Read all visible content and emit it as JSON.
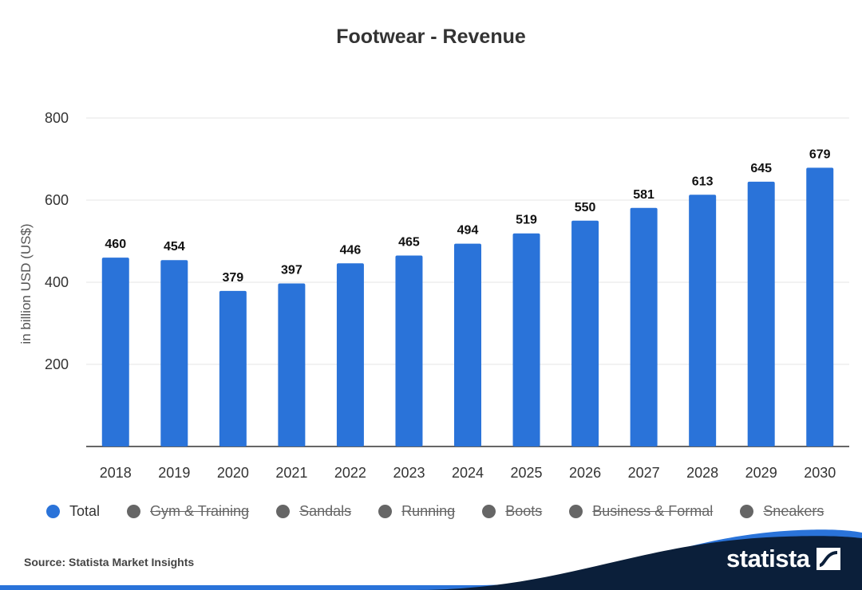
{
  "chart_data": {
    "type": "bar",
    "title": "Footwear - Revenue",
    "ylabel": "in billion USD (US$)",
    "xlabel": "",
    "categories": [
      "2018",
      "2019",
      "2020",
      "2021",
      "2022",
      "2023",
      "2024",
      "2025",
      "2026",
      "2027",
      "2028",
      "2029",
      "2030"
    ],
    "series": [
      {
        "name": "Total",
        "values": [
          460,
          454,
          379,
          397,
          446,
          465,
          494,
          519,
          550,
          581,
          613,
          645,
          679
        ]
      }
    ],
    "ylim": [
      0,
      800
    ],
    "yticks": [
      200,
      400,
      600,
      800
    ],
    "grid": true,
    "bar_color": "#2a73d9",
    "legend_position": "bottom-left"
  },
  "legend": {
    "items": [
      {
        "label": "Total",
        "active": true,
        "color": "#2a73d9"
      },
      {
        "label": "Gym & Training",
        "active": false,
        "color": "#666666"
      },
      {
        "label": "Sandals",
        "active": false,
        "color": "#666666"
      },
      {
        "label": "Running",
        "active": false,
        "color": "#666666"
      },
      {
        "label": "Boots",
        "active": false,
        "color": "#666666"
      },
      {
        "label": "Business & Formal",
        "active": false,
        "color": "#666666"
      },
      {
        "label": "Sneakers",
        "active": false,
        "color": "#666666"
      }
    ]
  },
  "footer": {
    "source": "Source: Statista Market Insights",
    "logo_text": "statista",
    "wave_color": "#0b1f3a",
    "wave_accent_color": "#2a73d9"
  }
}
